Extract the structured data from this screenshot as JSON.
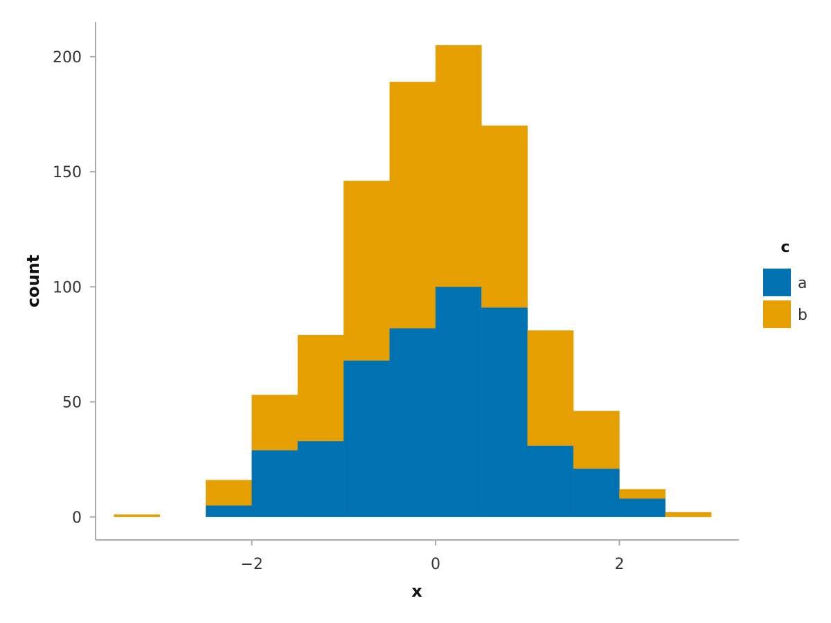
{
  "chart_data": {
    "type": "bar",
    "stacked": true,
    "bins": [
      {
        "x_start": -3.5,
        "x_end": -3.0
      },
      {
        "x_start": -3.0,
        "x_end": -2.5
      },
      {
        "x_start": -2.5,
        "x_end": -2.0
      },
      {
        "x_start": -2.0,
        "x_end": -1.5
      },
      {
        "x_start": -1.5,
        "x_end": -1.0
      },
      {
        "x_start": -1.0,
        "x_end": -0.5
      },
      {
        "x_start": -0.5,
        "x_end": 0.0
      },
      {
        "x_start": 0.0,
        "x_end": 0.5
      },
      {
        "x_start": 0.5,
        "x_end": 1.0
      },
      {
        "x_start": 1.0,
        "x_end": 1.5
      },
      {
        "x_start": 1.5,
        "x_end": 2.0
      },
      {
        "x_start": 2.0,
        "x_end": 2.5
      },
      {
        "x_start": 2.5,
        "x_end": 3.0
      }
    ],
    "series": [
      {
        "name": "a",
        "color": "#0072B2",
        "values": [
          0,
          0,
          5,
          29,
          33,
          68,
          82,
          100,
          91,
          31,
          21,
          8,
          0
        ]
      },
      {
        "name": "b",
        "color": "#E69F00",
        "values": [
          1,
          0,
          11,
          24,
          46,
          78,
          107,
          105,
          79,
          50,
          25,
          4,
          2
        ]
      }
    ],
    "xlabel": "x",
    "ylabel": "count",
    "xlim": [
      -3.7,
      3.3
    ],
    "ylim": [
      -10,
      215
    ],
    "xticks": [
      -2,
      0,
      2
    ],
    "xtick_labels": [
      "−2",
      "0",
      "2"
    ],
    "yticks": [
      0,
      50,
      100,
      150,
      200
    ],
    "ytick_labels": [
      "0",
      "50",
      "100",
      "150",
      "200"
    ],
    "grid": false,
    "legend": {
      "title": "c",
      "position": "right",
      "entries": [
        "a",
        "b"
      ]
    }
  }
}
